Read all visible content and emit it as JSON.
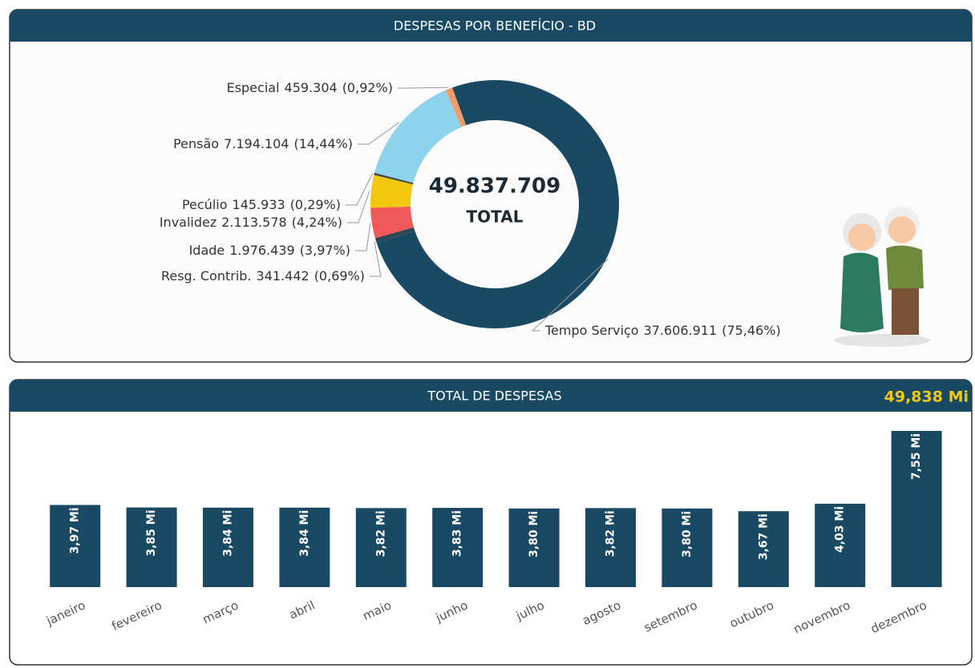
{
  "chart_data": [
    {
      "type": "donut",
      "title": "DESPESAS POR BENEFÍCIO - BD",
      "center_value": "49.837.709",
      "center_label": "TOTAL",
      "categories": [
        "Tempo Serviço",
        "Resg. Contrib.",
        "Idade",
        "Invalidez",
        "Pecúlio",
        "Pensão",
        "Especial"
      ],
      "values": [
        37606911,
        341442,
        1976439,
        2113578,
        145933,
        7194104,
        459304
      ],
      "value_labels": [
        "37.606.911",
        "341.442",
        "1.976.439",
        "2.113.578",
        "145.933",
        "7.194.104",
        "459.304"
      ],
      "percent_labels": [
        "(75,46%)",
        "(0,69%)",
        "(3,97%)",
        "(4,24%)",
        "(0,29%)",
        "(14,44%)",
        "(0,92%)"
      ],
      "colors": [
        "#1a4a63",
        "#2e4756",
        "#f0585a",
        "#f2c811",
        "#4a4a4a",
        "#8dd3ec",
        "#f59a6b"
      ]
    },
    {
      "type": "bar",
      "title": "TOTAL DE DESPESAS",
      "total_label": "49,838 Mi",
      "categories": [
        "janeiro",
        "fevereiro",
        "março",
        "abril",
        "maio",
        "junho",
        "julho",
        "agosto",
        "setembro",
        "outubro",
        "novembro",
        "dezembro"
      ],
      "values": [
        3.97,
        3.85,
        3.84,
        3.84,
        3.82,
        3.83,
        3.8,
        3.82,
        3.8,
        3.67,
        4.03,
        7.55
      ],
      "value_labels": [
        "3,97 Mi",
        "3,85 Mi",
        "3,84 Mi",
        "3,84 Mi",
        "3,82 Mi",
        "3,83 Mi",
        "3,80 Mi",
        "3,82 Mi",
        "3,80 Mi",
        "3,67 Mi",
        "4,03 Mi",
        "7,55 Mi"
      ],
      "color": "#1a4a63"
    }
  ]
}
